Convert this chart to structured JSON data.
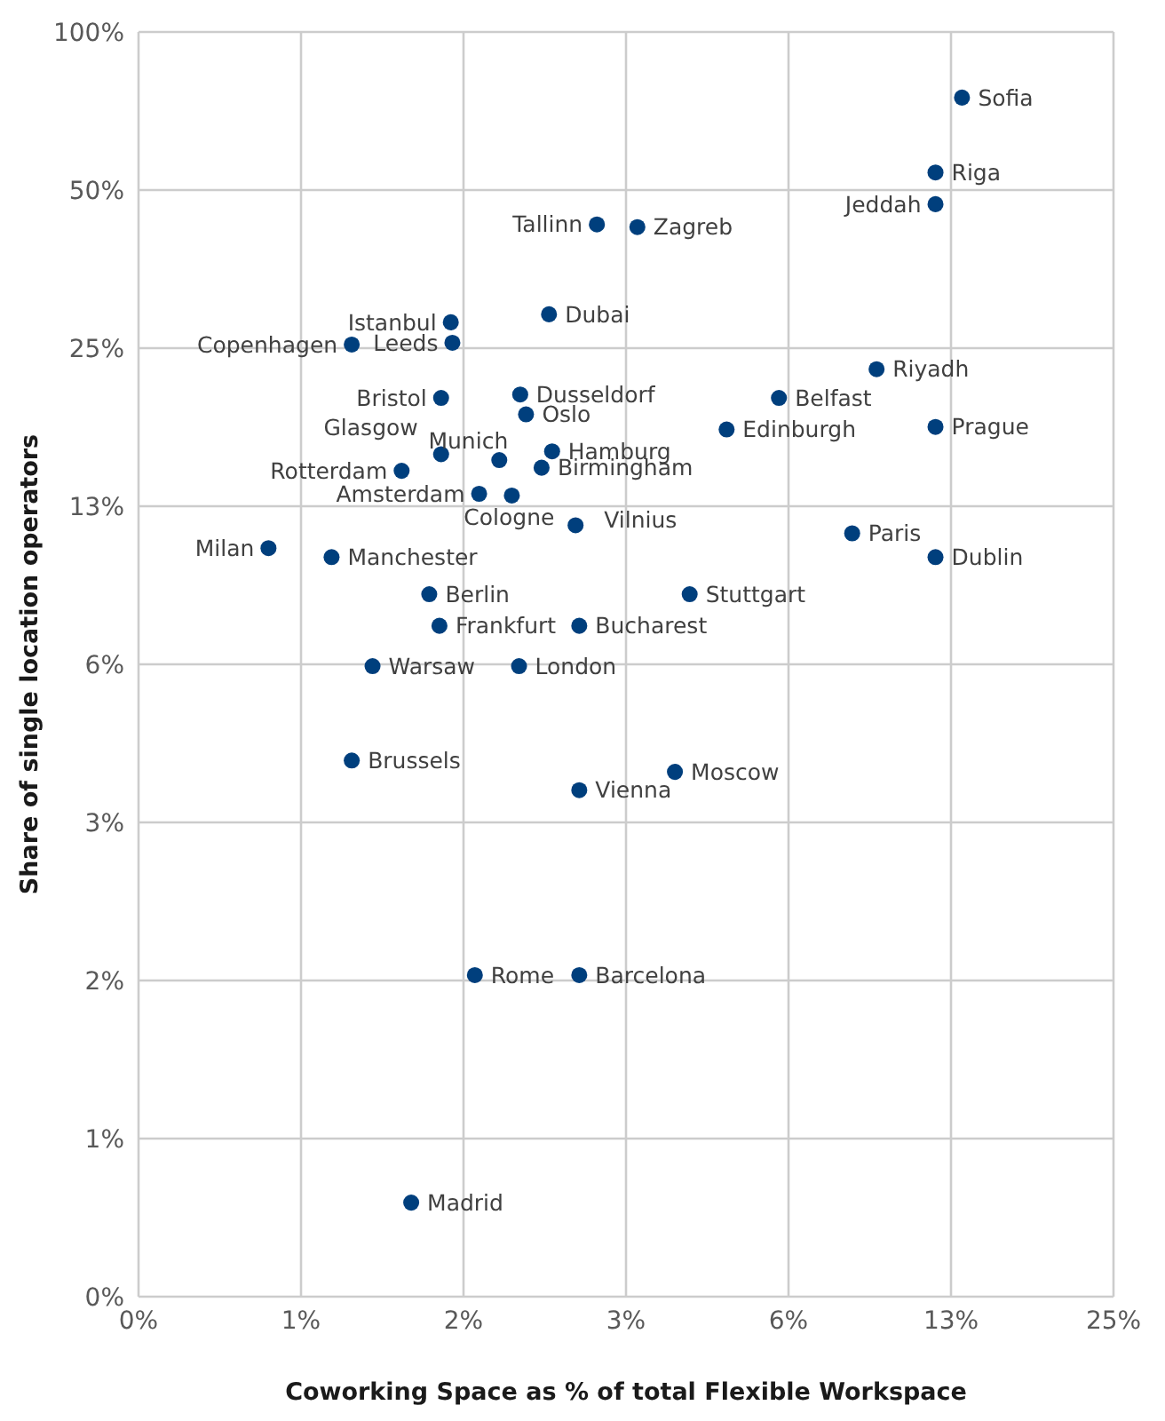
{
  "chart_data": {
    "type": "scatter",
    "xlabel": "Coworking Space as % of total Flexible Workspace",
    "ylabel": "Share of single location operators",
    "log": "xy",
    "grid": true,
    "marker": "circle",
    "xlim": [
      0.390625,
      25
    ],
    "xticks": [
      {
        "value": 0.390625,
        "label": "0%"
      },
      {
        "value": 0.78125,
        "label": "1%"
      },
      {
        "value": 1.5625,
        "label": "2%"
      },
      {
        "value": 3.125,
        "label": "3%"
      },
      {
        "value": 6.25,
        "label": "6%"
      },
      {
        "value": 12.5,
        "label": "13%"
      },
      {
        "value": 25,
        "label": "25%"
      }
    ],
    "ylim": [
      0.390625,
      100
    ],
    "yticks": [
      {
        "value": 0.390625,
        "label": "0%"
      },
      {
        "value": 0.78125,
        "label": "1%"
      },
      {
        "value": 1.5625,
        "label": "2%"
      },
      {
        "value": 3.125,
        "label": "3%"
      },
      {
        "value": 6.25,
        "label": "6%"
      },
      {
        "value": 12.5,
        "label": "13%"
      },
      {
        "value": 25,
        "label": "25%"
      },
      {
        "value": 50,
        "label": "50%"
      },
      {
        "value": 100,
        "label": "100%"
      }
    ],
    "series": [
      {
        "name": "Sofia",
        "color": "#003f7d",
        "x": [
          13.1
        ],
        "values": [
          75
        ]
      },
      {
        "name": "Riga",
        "color": "#003f7d",
        "x": [
          11.7
        ],
        "values": [
          54
        ]
      },
      {
        "name": "Jeddah",
        "color": "#003f7d",
        "x": [
          11.7
        ],
        "values": [
          47
        ]
      },
      {
        "name": "Tallinn",
        "color": "#003f7d",
        "x": [
          2.76
        ],
        "values": [
          43
        ]
      },
      {
        "name": "Zagreb",
        "color": "#003f7d",
        "x": [
          3.28
        ],
        "values": [
          42.5
        ]
      },
      {
        "name": "Dubai",
        "color": "#003f7d",
        "x": [
          2.25
        ],
        "values": [
          29
        ]
      },
      {
        "name": "Istanbul",
        "color": "#003f7d",
        "x": [
          1.48
        ],
        "values": [
          28
        ]
      },
      {
        "name": "Leeds",
        "color": "#003f7d",
        "x": [
          1.49
        ],
        "values": [
          25.6
        ]
      },
      {
        "name": "Copenhagen",
        "color": "#003f7d",
        "x": [
          0.97
        ],
        "values": [
          25.4
        ]
      },
      {
        "name": "Riyadh",
        "color": "#003f7d",
        "x": [
          9.1
        ],
        "values": [
          22.8
        ]
      },
      {
        "name": "Bristol",
        "color": "#003f7d",
        "x": [
          1.42
        ],
        "values": [
          20.1
        ]
      },
      {
        "name": "Dusseldorf",
        "color": "#003f7d",
        "x": [
          1.99
        ],
        "values": [
          20.4
        ]
      },
      {
        "name": "Belfast",
        "color": "#003f7d",
        "x": [
          6.0
        ],
        "values": [
          20.1
        ]
      },
      {
        "name": "Oslo",
        "color": "#003f7d",
        "x": [
          2.04
        ],
        "values": [
          18.7
        ]
      },
      {
        "name": "Edinburgh",
        "color": "#003f7d",
        "x": [
          4.8
        ],
        "values": [
          17.5
        ]
      },
      {
        "name": "Prague",
        "color": "#003f7d",
        "x": [
          11.7
        ],
        "values": [
          17.7
        ]
      },
      {
        "name": "Munich",
        "color": "#003f7d",
        "x": [
          1.82
        ],
        "values": [
          15.3
        ]
      },
      {
        "name": "Glasgow",
        "color": "#003f7d",
        "x": [
          1.42
        ],
        "values": [
          15.7
        ]
      },
      {
        "name": "Hamburg",
        "color": "#003f7d",
        "x": [
          2.28
        ],
        "values": [
          15.9
        ]
      },
      {
        "name": "Rotterdam",
        "color": "#003f7d",
        "x": [
          1.2
        ],
        "values": [
          14.6
        ]
      },
      {
        "name": "Birmingham",
        "color": "#003f7d",
        "x": [
          2.18
        ],
        "values": [
          14.8
        ]
      },
      {
        "name": "Amsterdam",
        "color": "#003f7d",
        "x": [
          1.67
        ],
        "values": [
          13.2
        ]
      },
      {
        "name": "Cologne",
        "color": "#003f7d",
        "x": [
          1.92
        ],
        "values": [
          13.1
        ]
      },
      {
        "name": "Vilnius",
        "color": "#003f7d",
        "x": [
          2.52
        ],
        "values": [
          11.5
        ]
      },
      {
        "name": "Paris",
        "color": "#003f7d",
        "x": [
          8.2
        ],
        "values": [
          11.1
        ]
      },
      {
        "name": "Dublin",
        "color": "#003f7d",
        "x": [
          11.7
        ],
        "values": [
          10
        ]
      },
      {
        "name": "Milan",
        "color": "#003f7d",
        "x": [
          0.68
        ],
        "values": [
          10.4
        ]
      },
      {
        "name": "Manchester",
        "color": "#003f7d",
        "x": [
          0.89
        ],
        "values": [
          10
        ]
      },
      {
        "name": "Berlin",
        "color": "#003f7d",
        "x": [
          1.35
        ],
        "values": [
          8.5
        ]
      },
      {
        "name": "Stuttgart",
        "color": "#003f7d",
        "x": [
          4.1
        ],
        "values": [
          8.5
        ]
      },
      {
        "name": "Frankfurt",
        "color": "#003f7d",
        "x": [
          1.41
        ],
        "values": [
          7.4
        ]
      },
      {
        "name": "Bucharest",
        "color": "#003f7d",
        "x": [
          2.56
        ],
        "values": [
          7.4
        ]
      },
      {
        "name": "Warsaw",
        "color": "#003f7d",
        "x": [
          1.06
        ],
        "values": [
          6.2
        ]
      },
      {
        "name": "London",
        "color": "#003f7d",
        "x": [
          1.98
        ],
        "values": [
          6.2
        ]
      },
      {
        "name": "Brussels",
        "color": "#003f7d",
        "x": [
          0.97
        ],
        "values": [
          4.1
        ]
      },
      {
        "name": "Moscow",
        "color": "#003f7d",
        "x": [
          3.85
        ],
        "values": [
          3.9
        ]
      },
      {
        "name": "Vienna",
        "color": "#003f7d",
        "x": [
          2.56
        ],
        "values": [
          3.6
        ]
      },
      {
        "name": "Rome",
        "color": "#003f7d",
        "x": [
          1.64
        ],
        "values": [
          1.6
        ]
      },
      {
        "name": "Barcelona",
        "color": "#003f7d",
        "x": [
          2.56
        ],
        "values": [
          1.6
        ]
      },
      {
        "name": "Madrid",
        "color": "#003f7d",
        "x": [
          1.25
        ],
        "values": [
          0.59
        ]
      }
    ]
  }
}
